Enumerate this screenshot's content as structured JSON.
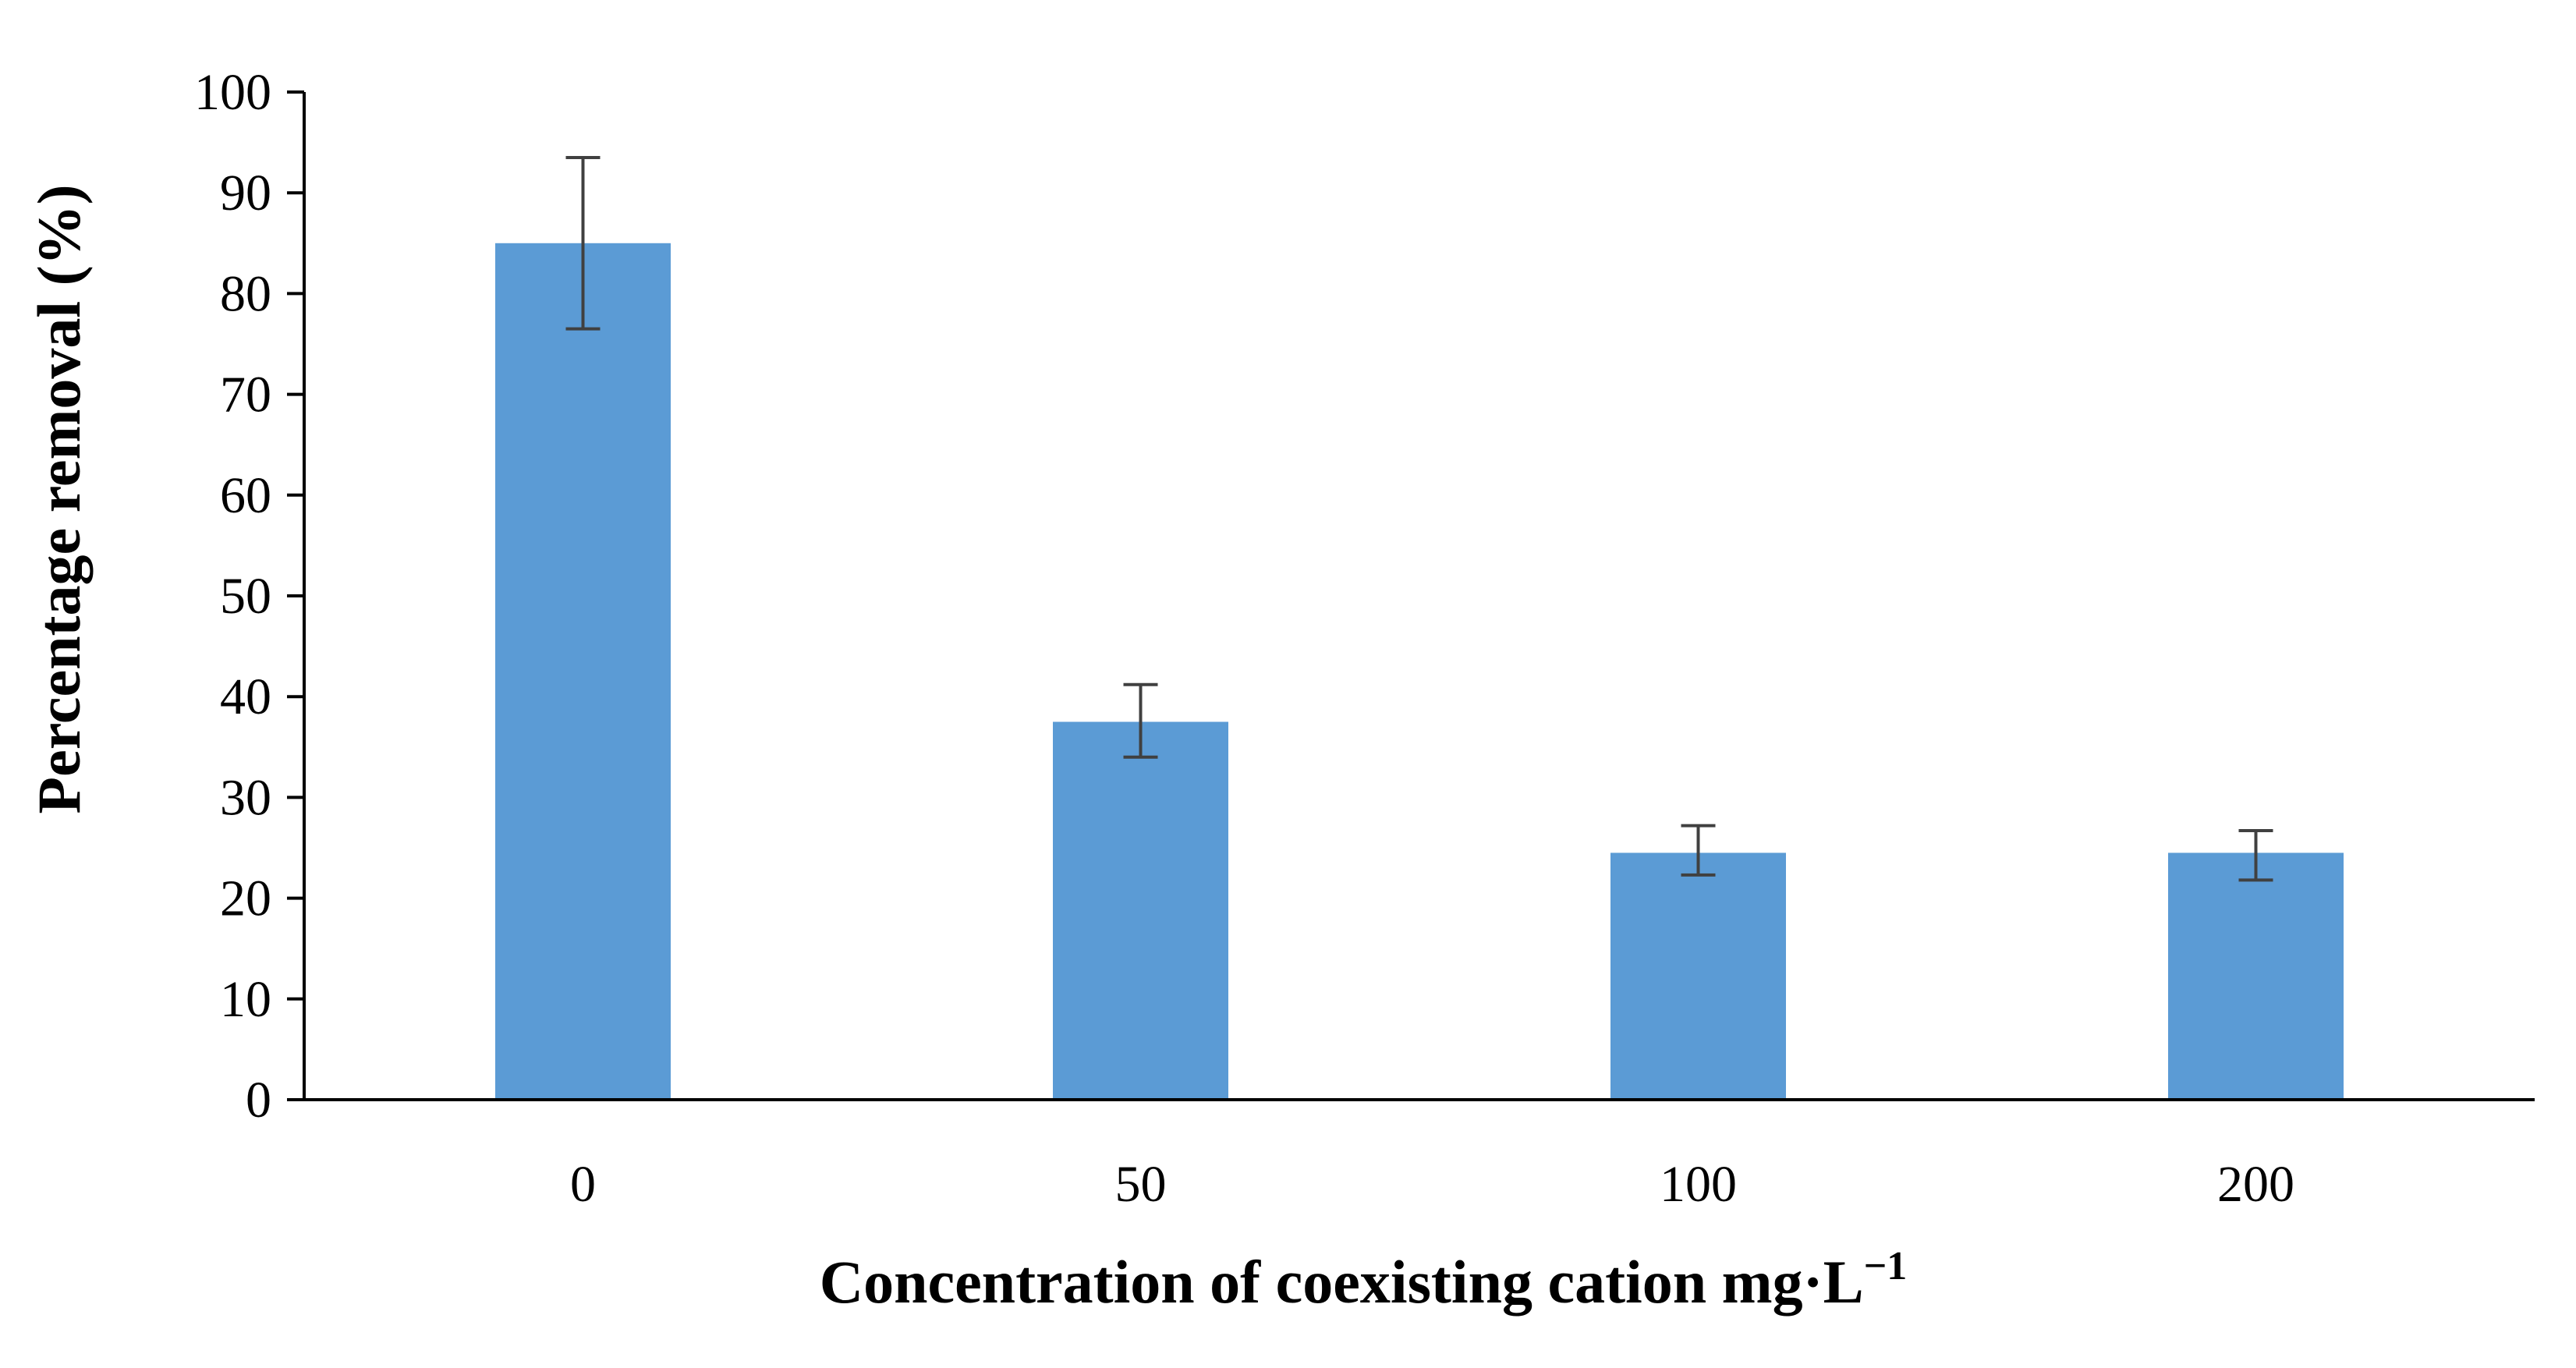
{
  "chart_data": {
    "type": "bar",
    "categories": [
      "0",
      "50",
      "100",
      "200"
    ],
    "values": [
      85,
      37.5,
      24.5,
      24.5
    ],
    "error_low": [
      76.5,
      34,
      22.3,
      21.8
    ],
    "error_high": [
      93.5,
      41.2,
      27.2,
      26.7
    ],
    "xlabel": "Concentration of coexisting cation mg·L",
    "xlabel_superscript": "−1",
    "ylabel": "Percentage removal (%)",
    "ylim": [
      0,
      100
    ],
    "yticks": [
      "0",
      "10",
      "20",
      "30",
      "40",
      "50",
      "60",
      "70",
      "80",
      "90",
      "100"
    ],
    "grid": false,
    "legend": "none",
    "bar_color": "#5b9bd5",
    "errorbar_color": "#404040",
    "axis_color": "#000000"
  }
}
